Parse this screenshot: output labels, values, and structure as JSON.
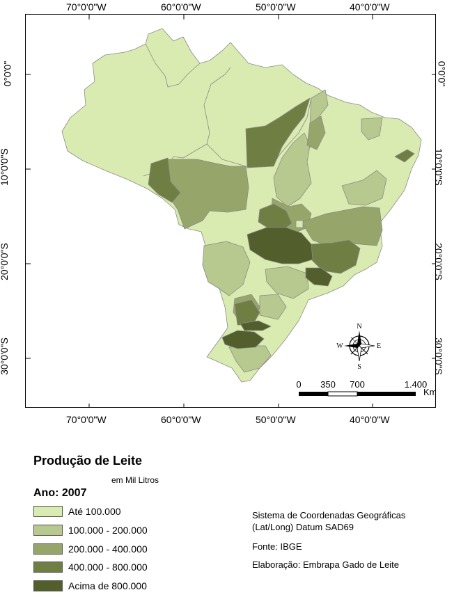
{
  "lon_labels": [
    "70°0'0\"W",
    "60°0'0\"W",
    "50°0'0\"W",
    "40°0'0\"W"
  ],
  "lat_labels": [
    "0°0'0\"",
    "10°0'0\"S",
    "20°0'0\"S",
    "30°0'0\"S"
  ],
  "map": {
    "fill_colors": {
      "class1": "#d9ebb0",
      "class2": "#b8c98f",
      "class3": "#96a66b",
      "class4": "#6f7f44",
      "class5": "#525e2c"
    }
  },
  "compass": {
    "n": "N",
    "s": "S",
    "e": "E",
    "w": "W"
  },
  "scale": {
    "labels": [
      "0",
      "350",
      "700",
      "1.400"
    ],
    "unit": "Km"
  },
  "legend": {
    "title": "Produção de Leite",
    "subtitle": "em Mil Litros",
    "year": "Ano: 2007",
    "classes": [
      {
        "label": "Até 100.000",
        "color": "#d9ebb0"
      },
      {
        "label": "100.000 - 200.000",
        "color": "#b8c98f"
      },
      {
        "label": "200.000 - 400.000",
        "color": "#96a66b"
      },
      {
        "label": "400.000 - 800.000",
        "color": "#6f7f44"
      },
      {
        "label": "Acima de 800.000",
        "color": "#525e2c"
      }
    ]
  },
  "info": {
    "crs_line1": "Sistema de Coordenadas Geográficas",
    "crs_line2": "(Lat/Long) Datum SAD69",
    "source": "Fonte: IBGE",
    "author": "Elaboração: Embrapa Gado de Leite"
  }
}
